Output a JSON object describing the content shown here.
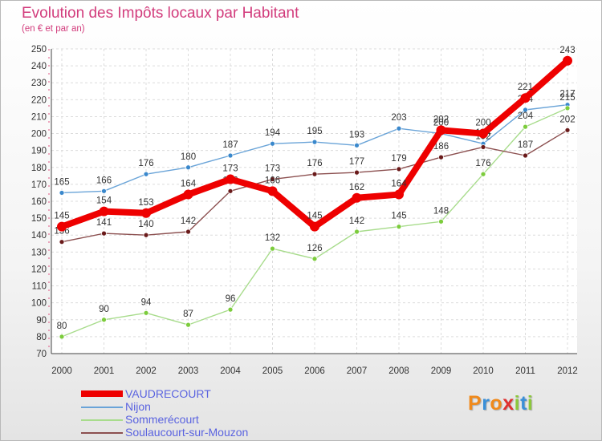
{
  "chart_data": {
    "type": "line",
    "title": "Evolution des Impôts locaux par Habitant",
    "subtitle": "(en € et par an)",
    "xlabel": "",
    "ylabel": "",
    "x": [
      "2000",
      "2001",
      "2002",
      "2003",
      "2004",
      "2005",
      "2006",
      "2007",
      "2008",
      "2009",
      "2010",
      "2011",
      "2012"
    ],
    "ylim": [
      70,
      250
    ],
    "yticks": [
      70,
      80,
      90,
      100,
      110,
      120,
      130,
      140,
      150,
      160,
      170,
      180,
      190,
      200,
      210,
      220,
      230,
      240,
      250
    ],
    "grid": true,
    "legend_position": "bottom-left",
    "series": [
      {
        "name": "Nijon",
        "color": "#6aa4d8",
        "marker_color": "#3a88cc",
        "values": [
          165,
          166,
          176,
          180,
          187,
          194,
          195,
          193,
          203,
          200,
          194,
          214,
          217
        ],
        "labels": [
          "165",
          "166",
          "176",
          "180",
          "187",
          "194",
          "195",
          "193",
          "203",
          "200",
          "194",
          "214",
          "217"
        ]
      },
      {
        "name": "Sommerécourt",
        "color": "#a8dc8c",
        "marker_color": "#7ccc3c",
        "values": [
          80,
          90,
          94,
          87,
          96,
          132,
          126,
          142,
          145,
          148,
          176,
          204,
          215
        ],
        "labels": [
          "80",
          "90",
          "94",
          "87",
          "96",
          "132",
          "126",
          "142",
          "145",
          "148",
          "176",
          "204",
          "215"
        ]
      },
      {
        "name": "Soulaucourt-sur-Mouzon",
        "color": "#8c5050",
        "marker_color": "#6a1a1a",
        "values": [
          136,
          141,
          140,
          142,
          166,
          173,
          176,
          177,
          179,
          186,
          192,
          187,
          202
        ],
        "labels": [
          "136",
          "141",
          "140",
          "142",
          "166",
          "173",
          "176",
          "177",
          "179",
          "186",
          "192",
          "187",
          "202"
        ]
      },
      {
        "name": "VAUDRECOURT",
        "color": "#ee0000",
        "marker_color": "#ee0000",
        "values": [
          145,
          154,
          153,
          164,
          173,
          166,
          145,
          162,
          164,
          202,
          200,
          221,
          243
        ],
        "labels": [
          "145",
          "154",
          "153",
          "164",
          "173",
          "166",
          "145",
          "162",
          "164",
          "202",
          "200",
          "221",
          "243"
        ]
      }
    ]
  },
  "legend": {
    "items": [
      {
        "label": "VAUDRECOURT",
        "color": "#ee0000"
      },
      {
        "label": "Nijon",
        "color": "#6aa4d8"
      },
      {
        "label": "Sommerécourt",
        "color": "#a8dc8c"
      },
      {
        "label": "Soulaucourt-sur-Mouzon",
        "color": "#8c5050"
      }
    ]
  },
  "logo": {
    "text": "Proxiti",
    "letters": [
      {
        "char": "P",
        "color": "#f08a1c"
      },
      {
        "char": "r",
        "color": "#3a8fd8"
      },
      {
        "char": "o",
        "color": "#f08a1c"
      },
      {
        "char": "x",
        "color": "#e03030"
      },
      {
        "char": "i",
        "color": "#8cc83c"
      },
      {
        "char": "t",
        "color": "#3a8fd8"
      },
      {
        "char": "i",
        "color": "#8cc83c"
      }
    ]
  }
}
